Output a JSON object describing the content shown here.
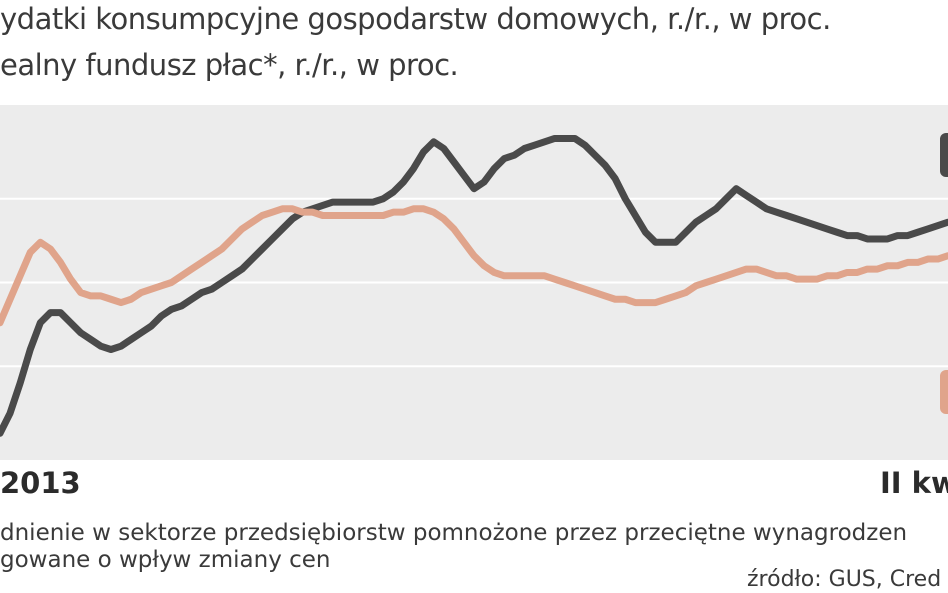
{
  "legend": {
    "series1_text": "ydatki konsumpcyjne gospodarstw domowych, r./r., w proc.",
    "series2_text": "ealny fundusz płac*, r./r., w proc."
  },
  "axis": {
    "left_tick": "2013",
    "right_tick": "II kw"
  },
  "footnote": {
    "line1": "dnienie w sektorze przedsiębiorstw pomnożone przez przeciętne wynagrodzen",
    "line2": "gowane o wpływ zmiany cen"
  },
  "source": "źródło: GUS, Cred",
  "colors": {
    "consumption": "#4a4a4a",
    "wages": "#e0a48b",
    "plot_bg": "#ececec",
    "grid": "#ffffff"
  },
  "chart_data": {
    "type": "line",
    "title": "",
    "xlabel": "",
    "ylabel": "",
    "x": [
      0,
      1,
      2,
      3,
      4,
      5,
      6,
      7,
      8,
      9,
      10,
      11,
      12,
      13,
      14,
      15,
      16,
      17,
      18,
      19,
      20,
      21,
      22,
      23,
      24,
      25,
      26,
      27,
      28,
      29,
      30,
      31,
      32,
      33,
      34,
      35,
      36,
      37,
      38,
      39,
      40,
      41,
      42,
      43,
      44,
      45,
      46,
      47,
      48,
      49,
      50,
      51,
      52,
      53,
      54,
      55,
      56,
      57,
      58,
      59,
      60,
      61,
      62,
      63,
      64,
      65,
      66,
      67,
      68,
      69,
      70,
      71,
      72,
      73,
      74,
      75,
      76,
      77,
      78,
      79,
      80,
      81,
      82,
      83,
      84,
      85,
      86,
      87,
      88,
      89,
      90,
      91,
      92,
      93,
      94
    ],
    "x_tick_labels": [
      "2013",
      "II kw"
    ],
    "ylim": [
      0,
      100
    ],
    "grid": true,
    "series": [
      {
        "key": "consumption",
        "values": [
          5,
          11,
          20,
          30,
          38,
          41,
          41,
          38,
          35,
          33,
          31,
          30,
          31,
          33,
          35,
          37,
          40,
          42,
          43,
          45,
          47,
          48,
          50,
          52,
          54,
          57,
          60,
          63,
          66,
          69,
          71,
          72,
          73,
          74,
          74,
          74,
          74,
          74,
          75,
          77,
          80,
          84,
          89,
          92,
          90,
          86,
          82,
          78,
          80,
          84,
          87,
          88,
          90,
          91,
          92,
          93,
          93,
          93,
          91,
          88,
          85,
          81,
          75,
          70,
          65,
          62,
          62,
          62,
          65,
          68,
          70,
          72,
          75,
          78,
          76,
          74,
          72,
          71,
          70,
          69,
          68,
          67,
          66,
          65,
          64,
          64,
          63,
          63,
          63,
          64,
          64,
          65,
          66,
          67,
          68
        ]
      },
      {
        "key": "wages",
        "values": [
          38,
          45,
          52,
          59,
          62,
          60,
          56,
          51,
          47,
          46,
          46,
          45,
          44,
          45,
          47,
          48,
          49,
          50,
          52,
          54,
          56,
          58,
          60,
          63,
          66,
          68,
          70,
          71,
          72,
          72,
          71,
          71,
          70,
          70,
          70,
          70,
          70,
          70,
          70,
          71,
          71,
          72,
          72,
          71,
          69,
          66,
          62,
          58,
          55,
          53,
          52,
          52,
          52,
          52,
          52,
          51,
          50,
          49,
          48,
          47,
          46,
          45,
          45,
          44,
          44,
          44,
          45,
          46,
          47,
          49,
          50,
          51,
          52,
          53,
          54,
          54,
          53,
          52,
          52,
          51,
          51,
          51,
          52,
          52,
          53,
          53,
          54,
          54,
          55,
          55,
          56,
          56,
          57,
          57,
          58
        ]
      }
    ]
  }
}
